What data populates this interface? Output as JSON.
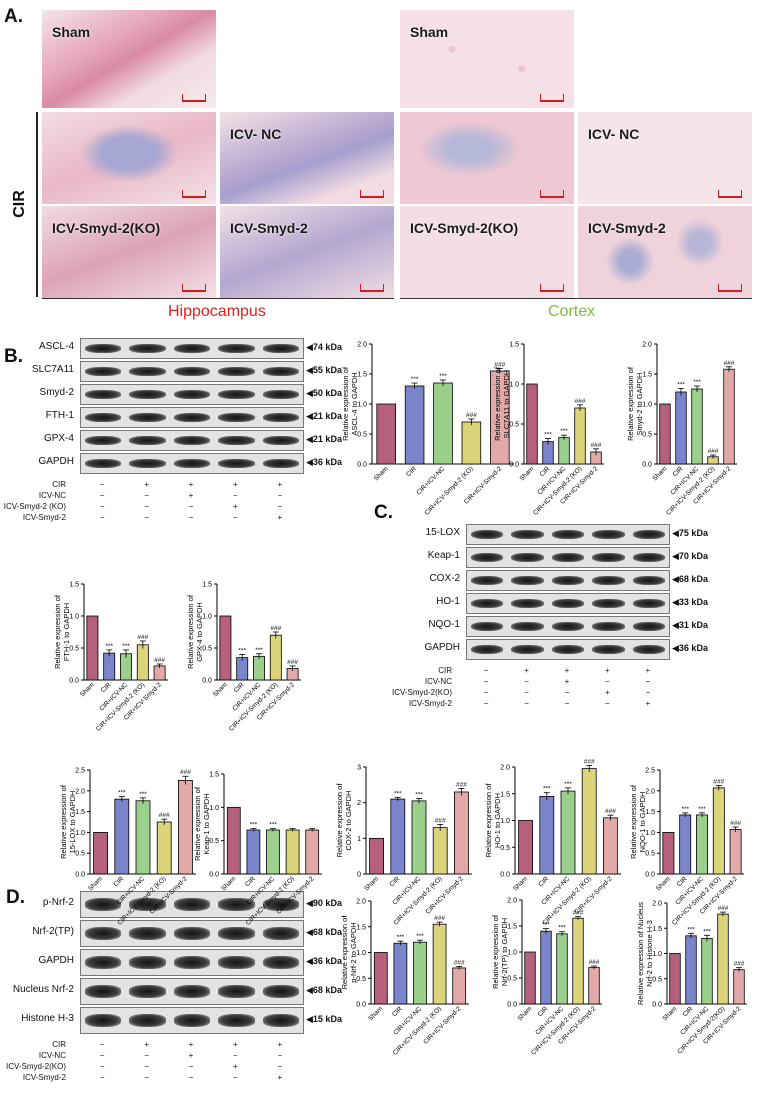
{
  "panels": {
    "a": "A.",
    "b": "B.",
    "c": "C.",
    "d": "D."
  },
  "panel_a": {
    "tiles": {
      "hip_sham": "Sham",
      "cor_sham": "Sham",
      "hip_icvnc": "ICV- NC",
      "cor_icvnc": "ICV- NC",
      "hip_ko": "ICV-Smyd-2(KO)",
      "hip_smyd": "ICV-Smyd-2",
      "cor_ko": "ICV-Smyd-2(KO)",
      "cor_smyd": "ICV-Smyd-2"
    },
    "cir_label": "CIR",
    "hippocampus": "Hippocampus",
    "cortex": "Cortex",
    "hippocampus_color": "#e02020",
    "cortex_color": "#7ac043"
  },
  "panel_b": {
    "bands": [
      "ASCL-4",
      "SLC7A11",
      "Smyd-2",
      "FTH-1",
      "GPX-4",
      "GAPDH"
    ],
    "kda": [
      "74 kDa",
      "55 kDa",
      "50 kDa",
      "21 kDa",
      "21 kDa",
      "36 kDa"
    ],
    "treatment_rows": [
      "CIR",
      "ICV-NC",
      "ICV-Smyd-2 (KO)",
      "ICV-Smyd-2"
    ]
  },
  "panel_c": {
    "bands": [
      "15-LOX",
      "Keap-1",
      "COX-2",
      "HO-1",
      "NQO-1",
      "GAPDH"
    ],
    "kda": [
      "75 kDa",
      "70 kDa",
      "68 kDa",
      "33 kDa",
      "31 kDa",
      "36 kDa"
    ],
    "treatment_rows": [
      "CIR",
      "ICV-NC",
      "ICV-Smyd-2(KO)",
      "ICV-Smyd-2"
    ]
  },
  "panel_d": {
    "bands": [
      "p-Nrf-2",
      "Nrf-2(TP)",
      "GAPDH",
      "Nucleus Nrf-2",
      "Histone H-3"
    ],
    "kda": [
      "90 kDa",
      "68 kDa",
      "36 kDa",
      "68 kDa",
      "15 kDa"
    ],
    "treatment_rows": [
      "CIR",
      "ICV-NC",
      "ICV-Smyd-2(KO)",
      "ICV-Smyd-2"
    ]
  },
  "treatment_matrix": [
    [
      "−",
      "+",
      "+",
      "+",
      "+"
    ],
    [
      "−",
      "−",
      "+",
      "−",
      "−"
    ],
    [
      "−",
      "−",
      "−",
      "+",
      "−"
    ],
    [
      "−",
      "−",
      "−",
      "−",
      "+"
    ]
  ],
  "chart_data": [
    {
      "type": "bar",
      "id": "ascl4",
      "ylabel": "Relative expression of ASCL-4 to GAPDH",
      "categories": [
        "Sham",
        "CIR",
        "CIR+ICV-NC",
        "CIR+ICV-Smyd-2 (KO)",
        "CIR+ICV-Smyd-2"
      ],
      "values": [
        1.0,
        1.3,
        1.35,
        0.7,
        1.55
      ],
      "errors": [
        0,
        0.05,
        0.05,
        0.05,
        0.04
      ],
      "annotations": [
        "",
        "***",
        "***",
        "###",
        "###"
      ],
      "ylim": [
        0,
        2.0
      ],
      "yticks": [
        "0.0",
        "0.5",
        "1.0",
        "1.5",
        "2.0"
      ]
    },
    {
      "type": "bar",
      "id": "slc7a11",
      "ylabel": "Relative expression of SLC7A11 to GAPDH",
      "categories": [
        "Sham",
        "CIR",
        "CIR+ICV-NC",
        "CIR+ICV-Smyd-2 (KO)",
        "CIR+ICV-Smyd-2"
      ],
      "values": [
        1.0,
        0.28,
        0.33,
        0.7,
        0.15
      ],
      "errors": [
        0,
        0.04,
        0.03,
        0.04,
        0.04
      ],
      "annotations": [
        "",
        "***",
        "***",
        "###",
        "###"
      ],
      "ylim": [
        0,
        1.5
      ],
      "yticks": [
        "0.0",
        "0.5",
        "1.0",
        "1.5"
      ]
    },
    {
      "type": "bar",
      "id": "smyd2",
      "ylabel": "Relative expression of Smyd-2 to GAPDH",
      "categories": [
        "Sham",
        "CIR",
        "CIR+ICV-NC",
        "CIR+ICV-Smyd-2 (KO)",
        "CIR+ICV-Smyd-2"
      ],
      "values": [
        1.0,
        1.2,
        1.25,
        0.12,
        1.58
      ],
      "errors": [
        0,
        0.06,
        0.05,
        0.03,
        0.04
      ],
      "annotations": [
        "",
        "***",
        "***",
        "###",
        "###"
      ],
      "ylim": [
        0,
        2.0
      ],
      "yticks": [
        "0.0",
        "0.5",
        "1.0",
        "1.5",
        "2.0"
      ]
    },
    {
      "type": "bar",
      "id": "fth1",
      "ylabel": "Relative expression of FTH-1 to GAPDH",
      "categories": [
        "Sham",
        "CIR",
        "CIR+ICV-NC",
        "CIR+ICV-Smyd-2 (KO)",
        "CIR+ICV-Smyd-2"
      ],
      "values": [
        1.0,
        0.42,
        0.41,
        0.55,
        0.22
      ],
      "errors": [
        0,
        0.05,
        0.06,
        0.06,
        0.03
      ],
      "annotations": [
        "",
        "***",
        "***",
        "###",
        "###"
      ],
      "ylim": [
        0,
        1.5
      ],
      "yticks": [
        "0.0",
        "0.5",
        "1.0",
        "1.5"
      ]
    },
    {
      "type": "bar",
      "id": "gpx4",
      "ylabel": "Relative expression of GPX-4 to GAPDH",
      "categories": [
        "Sham",
        "CIR",
        "CIR+ICV-NC",
        "CIR+ICV-Smyd-2 (KO)",
        "CIR+ICV-Smyd-2"
      ],
      "values": [
        1.0,
        0.35,
        0.37,
        0.7,
        0.18
      ],
      "errors": [
        0,
        0.05,
        0.04,
        0.05,
        0.04
      ],
      "annotations": [
        "",
        "***",
        "***",
        "###",
        "###"
      ],
      "ylim": [
        0,
        1.5
      ],
      "yticks": [
        "0.0",
        "0.5",
        "1.0",
        "1.5"
      ]
    },
    {
      "type": "bar",
      "id": "lox15",
      "ylabel": "Relative expression of 15-LOX to GAPDH",
      "categories": [
        "Sham",
        "CIR",
        "CIR+ICV-NC",
        "CIR+ICV-Smyd-2 (KO)",
        "CIR+ICV-Smyd-2"
      ],
      "values": [
        1.0,
        1.8,
        1.76,
        1.25,
        2.25
      ],
      "errors": [
        0,
        0.06,
        0.07,
        0.07,
        0.1
      ],
      "annotations": [
        "",
        "***",
        "***",
        "###",
        "###"
      ],
      "ylim": [
        0,
        2.5
      ],
      "yticks": [
        "0.0",
        "0.5",
        "1.0",
        "1.5",
        "2.0",
        "2.5"
      ]
    },
    {
      "type": "bar",
      "id": "keap1",
      "ylabel": "Relative expression of Keap-1 to GAPDH",
      "categories": [
        "Sham",
        "CIR",
        "CIR+ICV-NC",
        "CIR+ICV-Smyd-2 (KO)",
        "CIR+ICV-Smyd-2"
      ],
      "values": [
        1.0,
        0.66,
        0.66,
        0.66,
        0.66
      ],
      "errors": [
        0,
        0.02,
        0.02,
        0.02,
        0.02
      ],
      "annotations": [
        "",
        "***",
        "***",
        "",
        ""
      ],
      "ylim": [
        0,
        1.5
      ],
      "yticks": [
        "0.0",
        "0.5",
        "1.0",
        "1.5"
      ]
    },
    {
      "type": "bar",
      "id": "cox2",
      "ylabel": "Relative expression of COX-2 to GAPDH",
      "categories": [
        "Sham",
        "CIR",
        "CIR+ICV-NC",
        "CIR+ICV-Smyd-2 (KO)",
        "CIR+ICV-Smyd-2"
      ],
      "values": [
        1.0,
        2.1,
        2.05,
        1.3,
        2.3
      ],
      "errors": [
        0,
        0.05,
        0.07,
        0.09,
        0.1
      ],
      "annotations": [
        "",
        "***",
        "***",
        "###",
        "###"
      ],
      "ylim": [
        0,
        3
      ],
      "yticks": [
        "0",
        "1",
        "2",
        "3"
      ]
    },
    {
      "type": "bar",
      "id": "ho1",
      "ylabel": "Relative expression of HO-1 to GAPDH",
      "categories": [
        "Sham",
        "CIR",
        "CIR+ICV-NC",
        "CIR+ICV-Smyd-2 (KO)",
        "CIR+ICV-Smyd-2"
      ],
      "values": [
        1.0,
        1.45,
        1.55,
        1.97,
        1.05
      ],
      "errors": [
        0,
        0.07,
        0.06,
        0.06,
        0.05
      ],
      "annotations": [
        "",
        "***",
        "***",
        "###",
        "###"
      ],
      "ylim": [
        0,
        2.0
      ],
      "yticks": [
        "0.0",
        "0.5",
        "1.0",
        "1.5",
        "2.0"
      ]
    },
    {
      "type": "bar",
      "id": "nqo1",
      "ylabel": "Relative expression of NQO-1 to GAPDH",
      "categories": [
        "Sham",
        "CIR",
        "CIR+ICV-NC",
        "CIR+ICV-Smyd-2 (KO)",
        "CIR+ICV-Smyd-2"
      ],
      "values": [
        1.0,
        1.42,
        1.42,
        2.07,
        1.07
      ],
      "errors": [
        0,
        0.05,
        0.05,
        0.06,
        0.06
      ],
      "annotations": [
        "",
        "***",
        "***",
        "###",
        "###"
      ],
      "ylim": [
        0,
        2.5
      ],
      "yticks": [
        "0.0",
        "0.5",
        "1.0",
        "1.5",
        "2.0",
        "2.5"
      ]
    },
    {
      "type": "bar",
      "id": "pnrf2",
      "ylabel": "Relative expression of p-Nrf-2 to GAPDH",
      "categories": [
        "Sham",
        "CIR",
        "CIR+ICV-NC",
        "CIR+ICV-Smyd-2 (KO)",
        "CIR+ICV-Smyd-2"
      ],
      "values": [
        1.0,
        1.18,
        1.2,
        1.55,
        0.7
      ],
      "errors": [
        0,
        0.04,
        0.04,
        0.04,
        0.03
      ],
      "annotations": [
        "",
        "***",
        "***",
        "###",
        "###"
      ],
      "ylim": [
        0,
        2.0
      ],
      "yticks": [
        "0.0",
        "0.5",
        "1.0",
        "1.5",
        "2.0"
      ]
    },
    {
      "type": "bar",
      "id": "nrf2tp",
      "ylabel": "Relative expression of Nrf-2(TP) to GAPDH",
      "categories": [
        "Sham",
        "CIR",
        "CIR+ICV-NC",
        "CIR+ICV-Smyd-2 (KO)",
        "CIR+ICV-Smyd-2"
      ],
      "values": [
        1.0,
        1.4,
        1.35,
        1.65,
        0.7
      ],
      "errors": [
        0,
        0.05,
        0.04,
        0.03,
        0.03
      ],
      "annotations": [
        "",
        "***",
        "***",
        "###",
        "###"
      ],
      "ylim": [
        0,
        2.0
      ],
      "yticks": [
        "0.0",
        "0.5",
        "1.0",
        "1.5",
        "2.0"
      ]
    },
    {
      "type": "bar",
      "id": "nucnrf2",
      "ylabel": "Relative expression of Nucleus Nrf-2 to Histone H-3",
      "categories": [
        "Sham",
        "CIR",
        "CIR+ICV-NC",
        "CIR+ICV-Smyd-2(KO)",
        "CIR+ICV-Smyd-2"
      ],
      "values": [
        1.0,
        1.35,
        1.3,
        1.78,
        0.68
      ],
      "errors": [
        0,
        0.05,
        0.06,
        0.04,
        0.04
      ],
      "annotations": [
        "",
        "***",
        "***",
        "###",
        "###"
      ],
      "ylim": [
        0,
        2.0
      ],
      "yticks": [
        "0.0",
        "0.5",
        "1.0",
        "1.5",
        "2.0"
      ]
    }
  ],
  "colors": [
    "#b5607c",
    "#7a85cc",
    "#9ad08c",
    "#dcd47a",
    "#e3a9a9"
  ]
}
